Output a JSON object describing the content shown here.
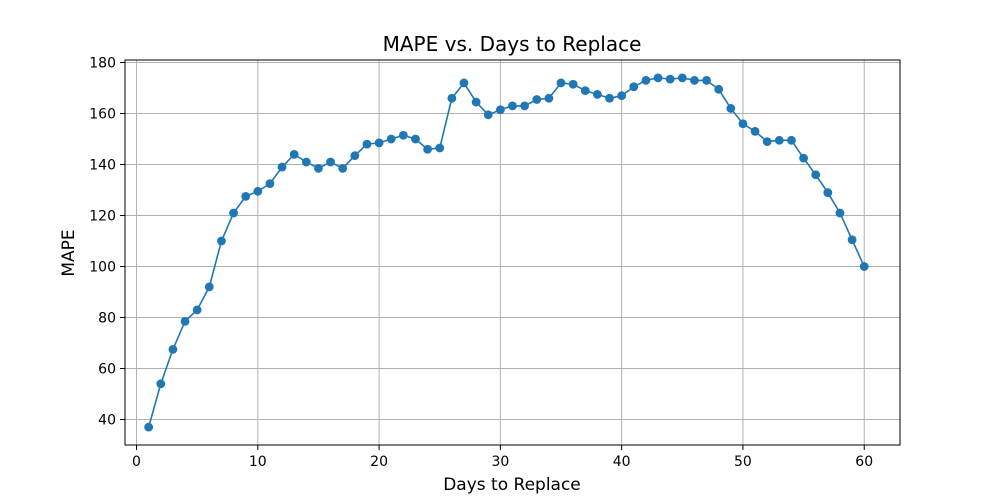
{
  "chart_data": {
    "type": "line",
    "title": "MAPE vs. Days to Replace",
    "xlabel": "Days to Replace",
    "ylabel": "MAPE",
    "xlim": [
      -0.95,
      62.95
    ],
    "ylim": [
      30,
      181
    ],
    "xticks": [
      0,
      10,
      20,
      30,
      40,
      50,
      60
    ],
    "yticks": [
      40,
      60,
      80,
      100,
      120,
      140,
      160,
      180
    ],
    "grid": true,
    "legend": "none",
    "marker": "circle",
    "color": "#1f77b4",
    "series": [
      {
        "x": [
          1,
          2,
          3,
          4,
          5,
          6,
          7,
          8,
          9,
          10,
          11,
          12,
          13,
          14,
          15,
          16,
          17,
          18,
          19,
          20,
          21,
          22,
          23,
          24,
          25,
          26,
          27,
          28,
          29,
          30,
          31,
          32,
          33,
          34,
          35,
          36,
          37,
          38,
          39,
          40,
          41,
          42,
          43,
          44,
          45,
          46,
          47,
          48,
          49,
          50,
          51,
          52,
          53,
          54,
          55,
          56,
          57,
          58,
          59,
          60
        ],
        "values": [
          37,
          54,
          67.5,
          78.5,
          83,
          92,
          110,
          121,
          127.5,
          129.5,
          132.5,
          139,
          144,
          141,
          138.5,
          141,
          138.5,
          143.5,
          148,
          148.5,
          150,
          151.5,
          150,
          146,
          146.5,
          166,
          172,
          164.5,
          159.5,
          161.5,
          163,
          163,
          165.5,
          166,
          172,
          171.5,
          169,
          167.5,
          166,
          167,
          170.5,
          173,
          174,
          173.5,
          174,
          173,
          173,
          169.5,
          162,
          156,
          153,
          149,
          149.5,
          149.5,
          142.5,
          136,
          129,
          121,
          110.5,
          100
        ]
      }
    ]
  }
}
